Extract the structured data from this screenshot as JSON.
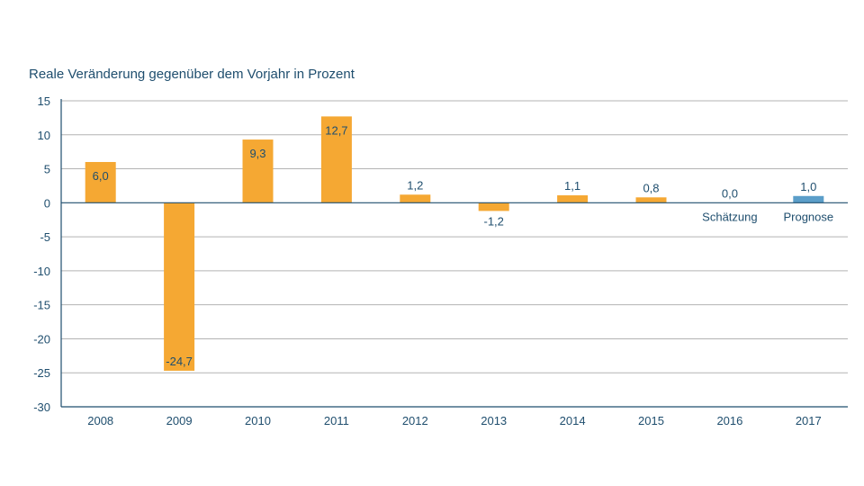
{
  "chart_data": {
    "type": "bar",
    "ylabel": "Reale Veränderung gegenüber dem Vorjahr in Prozent",
    "ylim": [
      -30,
      15
    ],
    "yticks": [
      15,
      10,
      5,
      0,
      -5,
      -10,
      -15,
      -20,
      -25,
      -30
    ],
    "grid": true,
    "categories": [
      "2008",
      "2009",
      "2010",
      "2011",
      "2012",
      "2013",
      "2014",
      "2015",
      "2016",
      "2017"
    ],
    "values": [
      6.0,
      -24.7,
      9.3,
      12.7,
      1.2,
      -1.2,
      1.1,
      0.8,
      0.0,
      1.0
    ],
    "value_labels": [
      "6,0",
      "-24,7",
      "9,3",
      "12,7",
      "1,2",
      "-1,2",
      "1,1",
      "0,8",
      "0,0",
      "1,0"
    ],
    "annotations": [
      {
        "category": "2016",
        "text": "Schätzung"
      },
      {
        "category": "2017",
        "text": "Prognose"
      }
    ],
    "colors": {
      "bar": "#f5a833",
      "forecast_bar": "#5b9ec9",
      "axis": "#1f4e6e",
      "grid": "#b3b3b3"
    },
    "bar_colors": [
      "#f5a833",
      "#f5a833",
      "#f5a833",
      "#f5a833",
      "#f5a833",
      "#f5a833",
      "#f5a833",
      "#f5a833",
      "#f5a833",
      "#5b9ec9"
    ]
  }
}
